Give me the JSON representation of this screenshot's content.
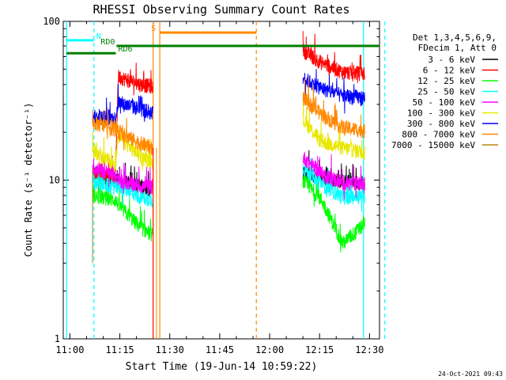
{
  "chart_data": {
    "type": "line",
    "title": "RHESSI Observing Summary Count Rates",
    "xlabel": "Start Time (19-Jun-14 10:59:22)",
    "ylabel": "Count Rate (s⁻¹ detector⁻¹)",
    "yscale": "log",
    "ylim": [
      1,
      100
    ],
    "xlim_minutes": [
      -1,
      94
    ],
    "y_ticks": [
      "1",
      "10",
      "100"
    ],
    "x_ticks": [
      {
        "label": "11:00",
        "minute": 1
      },
      {
        "label": "11:15",
        "minute": 16
      },
      {
        "label": "11:30",
        "minute": 31
      },
      {
        "label": "11:45",
        "minute": 46
      },
      {
        "label": "12:00",
        "minute": 61
      },
      {
        "label": "12:15",
        "minute": 76
      },
      {
        "label": "12:30",
        "minute": 91
      }
    ],
    "legend_header": [
      "Det 1,3,4,5,6,9,",
      "FDecim 1, Att 0"
    ],
    "series": [
      {
        "name": "3 - 6 keV",
        "color": "#000000",
        "seg1": [
          [
            7.8,
            11.2
          ],
          [
            14.7,
            10.0
          ],
          [
            22.4,
            9.2
          ],
          [
            26.0,
            8.8
          ]
        ],
        "seg2": [
          [
            71.0,
            11.0
          ],
          [
            76.6,
            10.5
          ],
          [
            83.0,
            9.8
          ],
          [
            89.6,
            9.6
          ]
        ]
      },
      {
        "name": "6 - 12 keV",
        "color": "#ff0000",
        "seg1": [
          [
            7.8,
            11.0
          ],
          [
            14.7,
            10.5
          ],
          [
            15.5,
            45.0
          ],
          [
            22.4,
            40.0
          ],
          [
            26.0,
            39.0
          ]
        ],
        "seg2": [
          [
            71.0,
            66.0
          ],
          [
            76.6,
            55.0
          ],
          [
            83.0,
            48.0
          ],
          [
            89.6,
            47.0
          ]
        ]
      },
      {
        "name": "12 - 25 keV",
        "color": "#00ff00",
        "seg1": [
          [
            7.8,
            8.0
          ],
          [
            14.7,
            7.5
          ],
          [
            15.5,
            7.0
          ],
          [
            22.4,
            5.0
          ],
          [
            26.0,
            4.5
          ]
        ],
        "seg2": [
          [
            71.0,
            10.0
          ],
          [
            76.6,
            7.5
          ],
          [
            83.0,
            4.0
          ],
          [
            89.6,
            5.3
          ]
        ]
      },
      {
        "name": "25 - 50 keV",
        "color": "#00ffff",
        "seg1": [
          [
            7.8,
            9.8
          ],
          [
            14.7,
            9.0
          ],
          [
            15.5,
            9.2
          ],
          [
            22.4,
            7.8
          ],
          [
            26.0,
            7.5
          ]
        ],
        "seg2": [
          [
            71.0,
            12.0
          ],
          [
            76.6,
            9.5
          ],
          [
            83.0,
            7.8
          ],
          [
            89.6,
            8.0
          ]
        ]
      },
      {
        "name": "50 - 100 keV",
        "color": "#ff00ff",
        "seg1": [
          [
            7.8,
            12.0
          ],
          [
            14.7,
            10.8
          ],
          [
            15.5,
            10.0
          ],
          [
            22.4,
            9.2
          ],
          [
            26.0,
            9.0
          ]
        ],
        "seg2": [
          [
            71.0,
            14.0
          ],
          [
            76.6,
            11.0
          ],
          [
            83.0,
            9.6
          ],
          [
            89.6,
            9.5
          ]
        ]
      },
      {
        "name": "100 - 300 keV",
        "color": "#e8e800",
        "seg1": [
          [
            7.8,
            15.5
          ],
          [
            14.7,
            12.5
          ],
          [
            15.5,
            19.0
          ],
          [
            22.4,
            14.0
          ],
          [
            26.0,
            13.2
          ]
        ],
        "seg2": [
          [
            71.0,
            24.0
          ],
          [
            76.6,
            17.5
          ],
          [
            83.0,
            16.0
          ],
          [
            89.6,
            15.0
          ]
        ]
      },
      {
        "name": "300 - 800 keV",
        "color": "#0000ff",
        "seg1": [
          [
            7.8,
            25.0
          ],
          [
            14.7,
            24.5
          ],
          [
            15.5,
            31.0
          ],
          [
            22.4,
            28.0
          ],
          [
            26.0,
            26.5
          ]
        ],
        "seg2": [
          [
            71.0,
            44.0
          ],
          [
            76.6,
            38.0
          ],
          [
            83.0,
            34.0
          ],
          [
            89.6,
            33.0
          ]
        ]
      },
      {
        "name": "800 - 7000 keV",
        "color": "#ff8800",
        "seg1": [
          [
            7.8,
            23.0
          ],
          [
            14.7,
            21.0
          ],
          [
            15.5,
            20.0
          ],
          [
            22.4,
            17.0
          ],
          [
            26.0,
            16.0
          ]
        ],
        "seg2": [
          [
            71.0,
            33.0
          ],
          [
            76.6,
            26.0
          ],
          [
            83.0,
            21.5
          ],
          [
            89.6,
            20.5
          ]
        ]
      },
      {
        "name": "7000 - 15000 keV",
        "color": "#b8860b",
        "seg1": [],
        "seg2": []
      }
    ],
    "annotations": [
      {
        "label": "N",
        "color": "#00ffff",
        "start": 0,
        "end": 8.2,
        "y": 76
      },
      {
        "label": "RD0",
        "color": "#008000",
        "start": 15.0,
        "end": 94.0,
        "y": 70
      },
      {
        "label": "RD6",
        "color": "#008000",
        "start": 0,
        "end": 14.8,
        "y": 63
      },
      {
        "label": "S",
        "color": "#ff8800",
        "start": 28.0,
        "end": 57.0,
        "y": 85
      }
    ],
    "markers": {
      "cyan_solid": [
        0,
        89.2
      ],
      "cyan_dashed": [
        8.2,
        95.6
      ],
      "orange_solid": [
        26.0,
        28.0
      ],
      "orange_dashed": [
        57.0
      ]
    },
    "gaps_minutes": [
      [
        26.0,
        58.0
      ]
    ],
    "timestamp": "24-Oct-2021 09:43"
  }
}
